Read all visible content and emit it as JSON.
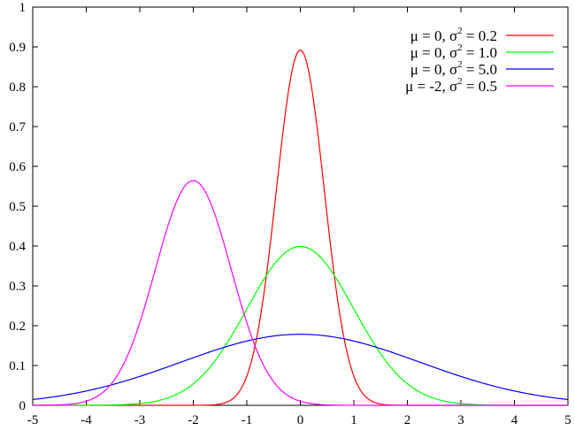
{
  "chart_data": {
    "type": "line",
    "title": "",
    "xlabel": "",
    "ylabel": "",
    "xlim": [
      -5,
      5
    ],
    "ylim": [
      0,
      1
    ],
    "x_ticks": [
      "-5",
      "-4",
      "-3",
      "-2",
      "-1",
      "0",
      "1",
      "2",
      "3",
      "4",
      "5"
    ],
    "y_ticks": [
      "0",
      "0.1",
      "0.2",
      "0.3",
      "0.4",
      "0.5",
      "0.6",
      "0.7",
      "0.8",
      "0.9",
      "1"
    ],
    "grid": false,
    "legend_position": "top-right",
    "series": [
      {
        "name_parts": [
          "μ = ",
          "0, σ",
          "2",
          " = 0.2"
        ],
        "mu": 0,
        "sigma2": 0.2,
        "color": "#ff0000",
        "x": [
          -2,
          -1.5,
          -1,
          -0.75,
          -0.5,
          -0.25,
          0,
          0.25,
          0.5,
          0.75,
          1,
          1.5,
          2
        ],
        "y": [
          4e-05,
          0.00326,
          0.07895,
          0.21965,
          0.47839,
          0.76021,
          0.89206,
          0.76021,
          0.47839,
          0.21965,
          0.07895,
          0.00326,
          4e-05
        ]
      },
      {
        "name_parts": [
          "μ = ",
          "0, σ",
          "2",
          " = 1.0"
        ],
        "mu": 0,
        "sigma2": 1.0,
        "color": "#00ff00",
        "x": [
          -4,
          -3,
          -2.5,
          -2,
          -1.5,
          -1,
          -0.5,
          0,
          0.5,
          1,
          1.5,
          2,
          2.5,
          3,
          4
        ],
        "y": [
          0.00013,
          0.00443,
          0.01753,
          0.05399,
          0.12952,
          0.24197,
          0.35207,
          0.39894,
          0.35207,
          0.24197,
          0.12952,
          0.05399,
          0.01753,
          0.00443,
          0.00013
        ]
      },
      {
        "name_parts": [
          "μ = ",
          "0, σ",
          "2",
          " = 5.0"
        ],
        "mu": 0,
        "sigma2": 5.0,
        "color": "#0000ff",
        "x": [
          -5,
          -4,
          -3,
          -2,
          -1,
          0,
          1,
          2,
          3,
          4,
          5
        ],
        "y": [
          0.01464,
          0.03564,
          0.07311,
          0.11967,
          0.16143,
          0.17841,
          0.16143,
          0.11967,
          0.07311,
          0.03564,
          0.01464
        ]
      },
      {
        "name_parts": [
          "μ = ",
          "-2, σ",
          "2",
          " = 0.5"
        ],
        "mu": -2,
        "sigma2": 0.5,
        "color": "#ff00ff",
        "x": [
          -5,
          -4.5,
          -4,
          -3.5,
          -3,
          -2.5,
          -2,
          -1.5,
          -1,
          -0.5,
          0,
          0.5,
          1
        ],
        "y": [
          1e-05,
          0.00109,
          0.01033,
          0.05906,
          0.20755,
          0.43939,
          0.56419,
          0.43939,
          0.20755,
          0.05906,
          0.01033,
          0.00109,
          1e-05
        ]
      }
    ]
  }
}
